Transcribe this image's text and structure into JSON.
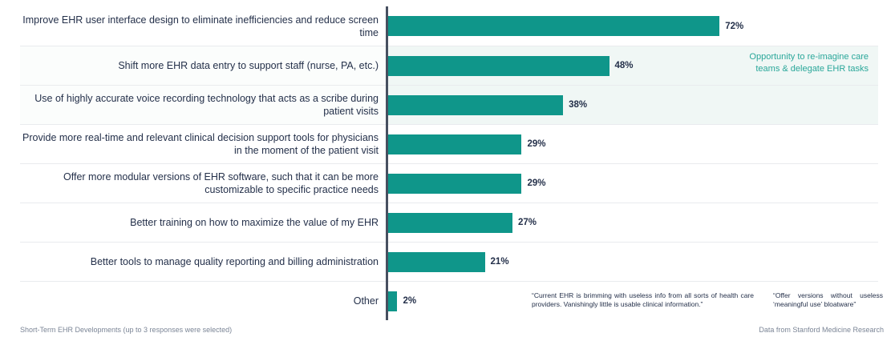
{
  "chart_data": {
    "type": "bar",
    "orientation": "horizontal",
    "title": "",
    "categories": [
      "Improve EHR user interface design to eliminate inefficiencies and reduce screen time",
      "Shift more EHR data entry to support staff (nurse, PA, etc.)",
      "Use of highly accurate voice recording technology that acts as a scribe during patient visits",
      "Provide more real-time and relevant clinical decision support tools for physicians in the moment of the patient visit",
      "Offer more modular versions of EHR software, such that it can be more customizable to specific practice needs",
      "Better training on how to maximize the value of my EHR",
      "Better tools to manage quality reporting and billing administration",
      "Other"
    ],
    "values": [
      72,
      48,
      38,
      29,
      29,
      27,
      21,
      2
    ],
    "unit": "%",
    "xlim": [
      0,
      100
    ],
    "bar_color": "#0f968a",
    "axis_color": "#475060",
    "highlighted_row_indices": [
      1,
      2
    ],
    "highlight_bg_color": "#f0f7f5",
    "legend": "none",
    "grid": "horizontal row dividers only"
  },
  "rows": [
    {
      "label": "Improve EHR user interface design to eliminate inefficiencies and reduce screen time",
      "value_label": "72%"
    },
    {
      "label": "Shift more EHR data entry to support staff (nurse, PA, etc.)",
      "value_label": "48%"
    },
    {
      "label": "Use of highly accurate voice recording technology that acts as a scribe during patient visits",
      "value_label": "38%"
    },
    {
      "label": "Provide more real-time and relevant clinical decision support tools for physicians in the moment of the patient visit",
      "value_label": "29%"
    },
    {
      "label": "Offer more modular versions of EHR software, such that it can be more customizable to specific practice needs",
      "value_label": "29%"
    },
    {
      "label": "Better training on how to maximize the value of my EHR",
      "value_label": "27%"
    },
    {
      "label": "Better tools to manage quality reporting and billing administration",
      "value_label": "21%"
    },
    {
      "label": "Other",
      "value_label": "2%"
    }
  ],
  "annotation": {
    "line1": "Opportunity to re-imagine care",
    "line2": "teams & delegate EHR tasks",
    "color": "#2aa79a"
  },
  "quotes": [
    {
      "text": "“Current EHR is brimming with useless info from all sorts of health care providers. Vanishingly little is usable clinical information.”"
    },
    {
      "text": "“Offer versions without useless ‘meaningful use’ bloatware”"
    }
  ],
  "footer": {
    "left": "Short-Term EHR Developments (up to 3 responses were selected)",
    "right": "Data from Stanford Medicine Research"
  }
}
